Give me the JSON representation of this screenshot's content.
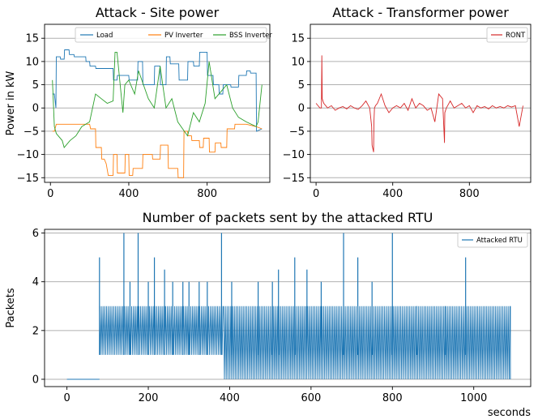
{
  "chart_data": [
    {
      "type": "line",
      "title": "Attack - Site power",
      "xlabel": "",
      "ylabel": "Power in kW",
      "xlim": [
        -30,
        1120
      ],
      "ylim": [
        -16,
        18
      ],
      "xticks": [
        0,
        400,
        800
      ],
      "yticks": [
        -15,
        -10,
        -5,
        0,
        5,
        10,
        15
      ],
      "grid": "y",
      "legend": "top-right",
      "series": [
        {
          "name": "Load",
          "color": "#1f77b4",
          "x": [
            10,
            20,
            28,
            30,
            50,
            52,
            70,
            72,
            95,
            97,
            120,
            122,
            180,
            182,
            200,
            202,
            230,
            232,
            320,
            322,
            340,
            342,
            400,
            402,
            445,
            447,
            470,
            472,
            530,
            532,
            560,
            562,
            590,
            592,
            610,
            612,
            655,
            657,
            700,
            702,
            730,
            732,
            760,
            762,
            800,
            802,
            830,
            832,
            860,
            862,
            880,
            882,
            920,
            922,
            960,
            962,
            1000,
            1002,
            1020,
            1022,
            1050,
            1052,
            1080
          ],
          "values": [
            3,
            3,
            0,
            11,
            11,
            10.5,
            10.5,
            12.5,
            12.5,
            11.5,
            11.5,
            11,
            11,
            10,
            10,
            9,
            9,
            8.5,
            8.5,
            6,
            6,
            7,
            7,
            6,
            6,
            10,
            10,
            5,
            5,
            9,
            9,
            5,
            5,
            11,
            11,
            9.5,
            9.5,
            6,
            6,
            10,
            10,
            9,
            9,
            12,
            12,
            7,
            7,
            5,
            5,
            3,
            3,
            5,
            5,
            4.5,
            4.5,
            7,
            7,
            8,
            8,
            7.5,
            7.5,
            -5,
            -4.5
          ]
        },
        {
          "name": "PV Inverter",
          "color": "#ff7f0e",
          "x": [
            10,
            20,
            30,
            100,
            200,
            205,
            230,
            232,
            260,
            262,
            275,
            285,
            295,
            320,
            322,
            340,
            342,
            380,
            382,
            400,
            402,
            420,
            422,
            470,
            472,
            520,
            522,
            560,
            562,
            600,
            602,
            650,
            652,
            680,
            682,
            700,
            702,
            720,
            722,
            760,
            762,
            780,
            782,
            810,
            812,
            840,
            842,
            870,
            872,
            900,
            902,
            940,
            942,
            1000,
            1050,
            1080
          ],
          "values": [
            -5,
            -5,
            -3.5,
            -3.5,
            -3.5,
            -4.5,
            -4.5,
            -8.5,
            -8.5,
            -11,
            -11,
            -12,
            -14.5,
            -14.5,
            -10,
            -10,
            -14,
            -14,
            -10,
            -10,
            -14.5,
            -14.5,
            -13,
            -13,
            -10,
            -10,
            -11,
            -11,
            -8,
            -8,
            -13,
            -13,
            -15,
            -15,
            -5,
            -5,
            -6,
            -6,
            -7,
            -7,
            -8.5,
            -8.5,
            -6.5,
            -6.5,
            -9.5,
            -9.5,
            -7.5,
            -7.5,
            -8.5,
            -8.5,
            -4.5,
            -4.5,
            -3.5,
            -3.5,
            -4,
            -4.5
          ]
        },
        {
          "name": "BSS Inverter",
          "color": "#2ca02c",
          "x": [
            10,
            20,
            30,
            60,
            70,
            100,
            130,
            160,
            200,
            230,
            260,
            290,
            320,
            330,
            340,
            370,
            380,
            400,
            430,
            450,
            500,
            530,
            560,
            590,
            620,
            650,
            700,
            730,
            760,
            790,
            810,
            840,
            880,
            900,
            930,
            960,
            1000,
            1050,
            1060,
            1080
          ],
          "values": [
            6,
            -4,
            -5.5,
            -7,
            -8.5,
            -7,
            -6,
            -4,
            -3,
            3,
            2,
            1,
            1.5,
            12,
            12,
            -1,
            5,
            6,
            3,
            8,
            2,
            0,
            9,
            0,
            2,
            -3,
            -6,
            -1,
            -3,
            1,
            10,
            2,
            4,
            5,
            0,
            -2,
            -3,
            -4,
            -3,
            5
          ]
        }
      ]
    },
    {
      "type": "line",
      "title": "Attack - Transformer power",
      "xlabel": "",
      "ylabel": "",
      "xlim": [
        -30,
        1120
      ],
      "ylim": [
        -16,
        18
      ],
      "xticks": [
        0,
        400,
        800
      ],
      "yticks": [
        -15,
        -10,
        -5,
        0,
        5,
        10,
        15
      ],
      "grid": "y",
      "legend": "top-right",
      "series": [
        {
          "name": "RONT",
          "color": "#d62728",
          "x": [
            0,
            10,
            20,
            28,
            30,
            32,
            40,
            60,
            80,
            100,
            120,
            140,
            160,
            180,
            200,
            220,
            240,
            260,
            280,
            290,
            292,
            300,
            302,
            305,
            310,
            320,
            340,
            360,
            380,
            400,
            420,
            440,
            460,
            480,
            500,
            520,
            540,
            560,
            580,
            600,
            620,
            640,
            660,
            670,
            672,
            680,
            700,
            720,
            740,
            760,
            780,
            800,
            820,
            840,
            860,
            880,
            900,
            920,
            940,
            960,
            980,
            1000,
            1020,
            1040,
            1060,
            1080
          ],
          "values": [
            1,
            0.5,
            0,
            0,
            11.3,
            2,
            1,
            0,
            0.5,
            -0.5,
            0,
            0.3,
            -0.2,
            0.5,
            0,
            -0.3,
            0.5,
            1.5,
            0,
            -4,
            -8,
            -9.5,
            -3,
            0,
            0.5,
            1,
            3,
            0.5,
            -1,
            0,
            0.5,
            0,
            1,
            -0.5,
            2,
            0,
            1,
            0.5,
            -0.5,
            0,
            -3,
            3,
            2,
            -7.5,
            -1,
            0,
            1.5,
            0,
            0.5,
            1,
            0,
            0.5,
            -1,
            0.5,
            0,
            0.3,
            -0.2,
            0.5,
            0,
            0.3,
            0,
            0.5,
            0.2,
            0.5,
            -4,
            0.5
          ]
        }
      ]
    },
    {
      "type": "line",
      "title": "Number of packets sent by the attacked RTU",
      "xlabel": "seconds",
      "ylabel": "Packets",
      "xlim": [
        -55,
        1140
      ],
      "ylim": [
        -0.3,
        6.15
      ],
      "xticks": [
        0,
        200,
        400,
        600,
        800,
        1000
      ],
      "yticks": [
        0,
        2,
        4,
        6
      ],
      "grid": "y",
      "legend": "top-right",
      "series": [
        {
          "name": "Attacked RTU",
          "color": "#1f77b4",
          "segments": [
            {
              "x_start": 80,
              "x_end": 385,
              "low": 1,
              "high": 3
            },
            {
              "x_start": 385,
              "x_end": 1090,
              "low": 0,
              "high": 3
            }
          ],
          "spikes_x": [
            80,
            140,
            155,
            175,
            200,
            215,
            240,
            260,
            285,
            300,
            325,
            345,
            380,
            405,
            470,
            505,
            520,
            560,
            590,
            625,
            680,
            715,
            750,
            800,
            860,
            930,
            980
          ],
          "spikes_y": [
            5,
            6,
            4,
            6,
            4,
            5,
            4.5,
            4,
            4,
            4,
            4,
            4,
            6,
            4,
            4,
            4,
            4.5,
            5,
            4.5,
            4,
            6,
            5,
            4,
            6,
            3,
            3,
            5
          ]
        }
      ]
    }
  ]
}
